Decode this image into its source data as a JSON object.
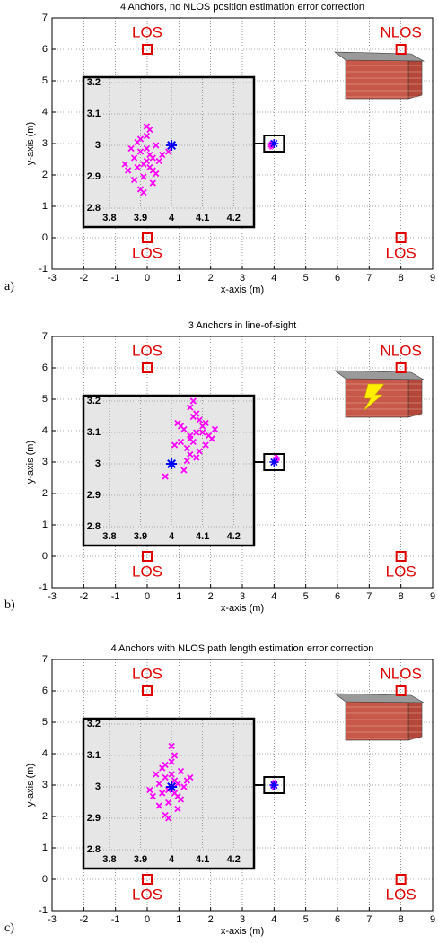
{
  "chart_data": [
    {
      "type": "scatter",
      "panel_label": "a)",
      "title": "4 Anchors, no NLOS position estimation error correction",
      "xlabel": "x-axis (m)",
      "ylabel": "y-axis (m)",
      "xlim": [
        -3,
        9
      ],
      "ylim": [
        -1,
        7
      ],
      "xticks": [
        -3,
        -2,
        -1,
        0,
        1,
        2,
        3,
        4,
        5,
        6,
        7,
        8,
        9
      ],
      "yticks": [
        -1,
        0,
        1,
        2,
        3,
        4,
        5,
        6,
        7
      ],
      "grid": true,
      "anchors": {
        "x": [
          0,
          8,
          0,
          8
        ],
        "y": [
          6,
          6,
          0,
          0
        ],
        "labels": [
          "LOS",
          "NLOS",
          "LOS",
          "LOS"
        ],
        "color": "#e00000"
      },
      "true_position": {
        "x": [
          4
        ],
        "y": [
          3
        ],
        "color": "#0000ff"
      },
      "estimates": {
        "color": "#ff00ff",
        "x": [
          3.92,
          3.9,
          3.94,
          3.88,
          3.95,
          3.91,
          3.93,
          3.89,
          3.96,
          3.87,
          3.92,
          3.94,
          3.9,
          3.86,
          3.97,
          3.93,
          3.91,
          3.89,
          3.95,
          3.92,
          3.88,
          3.94,
          3.9,
          3.93,
          3.91,
          3.99,
          3.92,
          3.85
        ],
        "y": [
          2.95,
          2.98,
          2.92,
          2.96,
          3.0,
          2.9,
          2.97,
          2.93,
          2.95,
          2.99,
          3.03,
          2.88,
          2.86,
          2.92,
          2.97,
          3.05,
          2.94,
          3.01,
          2.91,
          2.99,
          2.89,
          2.96,
          3.02,
          2.93,
          2.85,
          2.98,
          3.06,
          2.94
        ]
      },
      "inset": {
        "xlim": [
          3.78,
          4.26
        ],
        "ylim": [
          2.8,
          3.2
        ],
        "xticks": [
          3.8,
          3.9,
          4,
          4.1,
          4.2
        ],
        "yticks": [
          2.8,
          2.9,
          3,
          3.1,
          3.2
        ]
      }
    },
    {
      "type": "scatter",
      "panel_label": "b)",
      "title": "3 Anchors in line-of-sight",
      "xlabel": "x-axis (m)",
      "ylabel": "y-axis (m)",
      "xlim": [
        -3,
        9
      ],
      "ylim": [
        -1,
        7
      ],
      "xticks": [
        -3,
        -2,
        -1,
        0,
        1,
        2,
        3,
        4,
        5,
        6,
        7,
        8,
        9
      ],
      "yticks": [
        -1,
        0,
        1,
        2,
        3,
        4,
        5,
        6,
        7
      ],
      "grid": true,
      "anchors": {
        "x": [
          0,
          8,
          0,
          8
        ],
        "y": [
          6,
          6,
          0,
          0
        ],
        "labels": [
          "LOS",
          "NLOS",
          "LOS",
          "LOS"
        ],
        "color": "#e00000"
      },
      "true_position": {
        "x": [
          4
        ],
        "y": [
          3
        ],
        "color": "#0000ff"
      },
      "estimates": {
        "color": "#ff00ff",
        "x": [
          4.06,
          4.08,
          4.05,
          4.1,
          4.07,
          4.03,
          4.12,
          4.09,
          4.04,
          4.11,
          4.06,
          4.08,
          4.02,
          4.13,
          4.07,
          4.05,
          4.09,
          4.1,
          4.06,
          4.01,
          4.08,
          3.98,
          4.04,
          4.14,
          4.07,
          4.03,
          4.11,
          4.06
        ],
        "y": [
          3.08,
          3.1,
          3.05,
          3.12,
          3.15,
          3.07,
          3.09,
          3.04,
          3.11,
          3.06,
          3.18,
          3.02,
          3.13,
          3.08,
          3.2,
          3.01,
          3.14,
          3.1,
          3.03,
          3.06,
          3.16,
          2.96,
          2.98,
          3.11,
          3.07,
          3.12,
          3.13,
          3.09
        ]
      },
      "inset": {
        "xlim": [
          3.78,
          4.26
        ],
        "ylim": [
          2.8,
          3.2
        ],
        "xticks": [
          3.8,
          3.9,
          4,
          4.1,
          4.2
        ],
        "yticks": [
          2.8,
          2.9,
          3,
          3.1,
          3.2
        ]
      }
    },
    {
      "type": "scatter",
      "panel_label": "c)",
      "title": "4 Anchors with NLOS path length estimation error correction",
      "xlabel": "x-axis (m)",
      "ylabel": "y-axis (m)",
      "xlim": [
        -3,
        9
      ],
      "ylim": [
        -1,
        7
      ],
      "xticks": [
        -3,
        -2,
        -1,
        0,
        1,
        2,
        3,
        4,
        5,
        6,
        7,
        8,
        9
      ],
      "yticks": [
        -1,
        0,
        1,
        2,
        3,
        4,
        5,
        6,
        7
      ],
      "grid": true,
      "anchors": {
        "x": [
          0,
          8,
          0,
          8
        ],
        "y": [
          6,
          6,
          0,
          0
        ],
        "labels": [
          "LOS",
          "NLOS",
          "LOS",
          "LOS"
        ],
        "color": "#e00000"
      },
      "true_position": {
        "x": [
          4
        ],
        "y": [
          3
        ],
        "color": "#0000ff"
      },
      "estimates": {
        "color": "#ff00ff",
        "x": [
          4.0,
          3.98,
          4.02,
          3.96,
          4.03,
          3.99,
          4.01,
          3.97,
          4.04,
          3.95,
          4.0,
          4.02,
          3.98,
          3.94,
          4.05,
          4.01,
          3.99,
          3.97,
          4.03,
          4.0,
          3.96,
          4.02,
          3.98,
          4.01,
          3.99,
          4.06,
          4.0,
          3.93
        ],
        "y": [
          3.0,
          3.03,
          2.97,
          3.01,
          3.05,
          2.95,
          3.02,
          2.98,
          3.0,
          3.04,
          3.08,
          2.93,
          2.91,
          2.97,
          3.02,
          3.1,
          2.99,
          3.06,
          2.96,
          3.04,
          2.94,
          3.01,
          3.07,
          2.98,
          2.9,
          3.03,
          3.13,
          2.99
        ]
      },
      "inset": {
        "xlim": [
          3.78,
          4.26
        ],
        "ylim": [
          2.8,
          3.2
        ],
        "xticks": [
          3.8,
          3.9,
          4,
          4.1,
          4.2
        ],
        "yticks": [
          2.8,
          2.9,
          3,
          3.1,
          3.2
        ]
      }
    }
  ]
}
